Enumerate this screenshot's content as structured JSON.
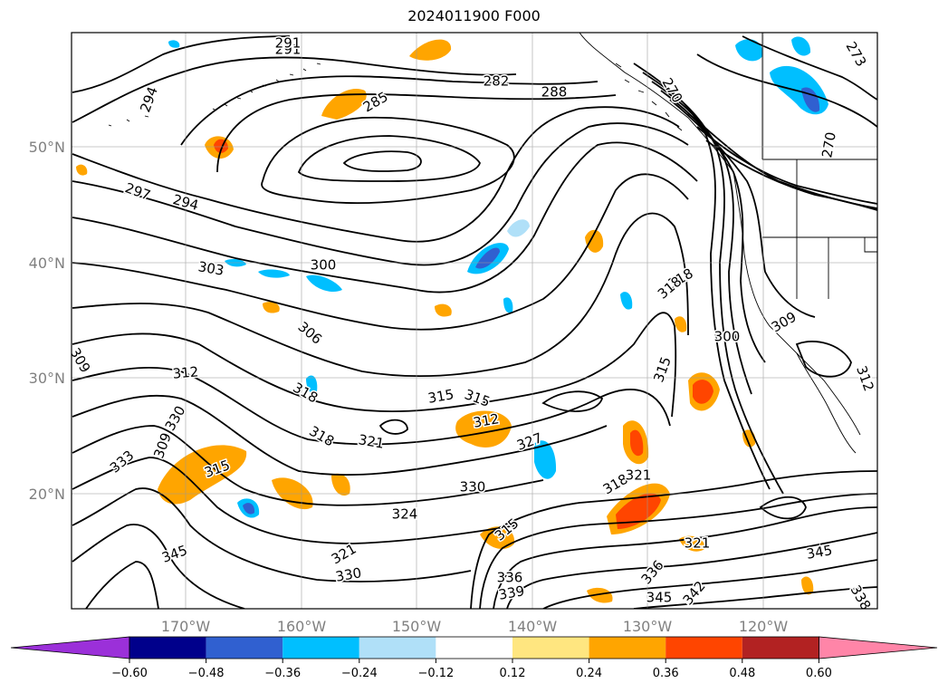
{
  "title": "2024011900 F000",
  "lon_ticks": [
    "170°W",
    "160°W",
    "150°W",
    "140°W",
    "130°W",
    "120°W"
  ],
  "lat_ticks": [
    "50°N",
    "40°N",
    "30°N",
    "20°N"
  ],
  "colorbar": {
    "ticks": [
      "−0.60",
      "−0.48",
      "−0.36",
      "−0.24",
      "−0.12",
      "0.12",
      "0.24",
      "0.36",
      "0.48",
      "0.60"
    ],
    "colors": [
      "#9b30d9",
      "#00008b",
      "#3060d0",
      "#00bfff",
      "#b0e0f8",
      "#ffffff",
      "#ffe680",
      "#ffa500",
      "#ff4500",
      "#b22222",
      "#ff85a8"
    ]
  },
  "contour_labels": [
    "291",
    "294",
    "291",
    "282",
    "288",
    "285",
    "270",
    "273",
    "270",
    "297",
    "294",
    "303",
    "300",
    "306",
    "318",
    "318",
    "309",
    "300",
    "309",
    "312",
    "318",
    "315",
    "315",
    "315",
    "312",
    "312",
    "330",
    "318",
    "321",
    "327",
    "309",
    "333",
    "315",
    "330",
    "318",
    "321",
    "324",
    "315",
    "345",
    "321",
    "330",
    "336",
    "339",
    "321",
    "336",
    "345",
    "342",
    "345",
    "338"
  ],
  "chart_data": {
    "type": "contour map",
    "title": "2024011900 F000",
    "x_axis_ticks": [
      "170°W",
      "160°W",
      "150°W",
      "140°W",
      "130°W",
      "120°W"
    ],
    "y_axis_ticks": [
      "50°N",
      "40°N",
      "30°N",
      "20°N"
    ],
    "colorbar_levels": [
      -0.6,
      -0.48,
      -0.36,
      -0.24,
      -0.12,
      0.12,
      0.24,
      0.36,
      0.48,
      0.6
    ],
    "colorbar_extend": "both",
    "colorbar_placement": "bottom",
    "contour_line_levels": [
      270,
      273,
      282,
      285,
      288,
      291,
      294,
      297,
      300,
      303,
      306,
      309,
      312,
      315,
      318,
      321,
      324,
      327,
      330,
      333,
      336,
      338,
      339,
      342,
      345
    ],
    "grid": true
  }
}
